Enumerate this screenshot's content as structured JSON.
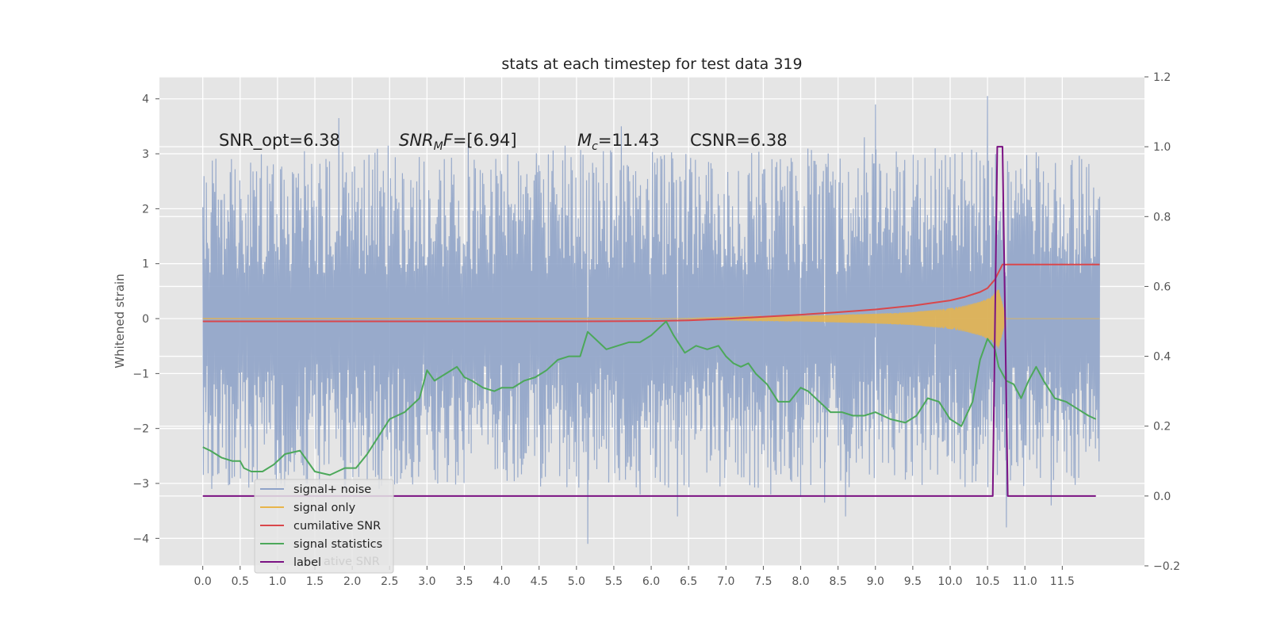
{
  "chart_data": {
    "type": "line",
    "title": "stats at each timestep for test data 319",
    "xlabel": "",
    "ylabel": "Whitened strain",
    "y2label": "",
    "xlim": [
      -0.58,
      12.6
    ],
    "ylim": [
      -4.5,
      4.4
    ],
    "y2lim": [
      -0.2,
      1.2
    ],
    "xticks": [
      "0.0",
      "0.5",
      "1.0",
      "1.5",
      "2.0",
      "2.5",
      "3.0",
      "3.5",
      "4.0",
      "4.5",
      "5.0",
      "5.5",
      "6.0",
      "6.5",
      "7.0",
      "7.5",
      "8.0",
      "8.5",
      "9.0",
      "9.5",
      "10.0",
      "10.5",
      "11.0",
      "11.5"
    ],
    "yticks": [
      "4",
      "3",
      "2",
      "1",
      "0",
      "−1",
      "−2",
      "−3",
      "−4"
    ],
    "y2ticks": [
      "1.2",
      "1.0",
      "0.8",
      "0.6",
      "0.4",
      "0.2",
      "0.0",
      "−0.2"
    ],
    "grid": true,
    "legend_position": "lower-left",
    "annotations": [
      {
        "id": "snr_opt",
        "text": "SNR_opt=6.38",
        "x": 0.2
      },
      {
        "id": "snr_mf",
        "text": "=[6.94]",
        "x": 2.6
      },
      {
        "id": "mc",
        "text": "=11.43",
        "x": 5.0
      },
      {
        "id": "csnr",
        "text": "CSNR=6.38",
        "x": 6.5
      }
    ],
    "series": [
      {
        "name": "signal+ noise",
        "color": "#8fa3c8",
        "description_axis": "left",
        "x_range": [
          0.0,
          12.0
        ],
        "typical_envelope": [
          -2.0,
          2.0
        ],
        "spikes": [
          {
            "x": 0.12,
            "y": -3.1
          },
          {
            "x": 1.82,
            "y": 3.65
          },
          {
            "x": 2.48,
            "y": 3.15
          },
          {
            "x": 3.55,
            "y": 3.2
          },
          {
            "x": 4.85,
            "y": 3.15
          },
          {
            "x": 5.15,
            "y": -4.1
          },
          {
            "x": 5.6,
            "y": 3.5
          },
          {
            "x": 5.85,
            "y": -3.2
          },
          {
            "x": 6.0,
            "y": 1.1
          },
          {
            "x": 6.35,
            "y": -3.6
          },
          {
            "x": 7.6,
            "y": -3.2
          },
          {
            "x": 8.0,
            "y": -3.25
          },
          {
            "x": 8.32,
            "y": -3.35
          },
          {
            "x": 8.6,
            "y": -3.6
          },
          {
            "x": 8.85,
            "y": 3.3
          },
          {
            "x": 9.0,
            "y": 3.9
          },
          {
            "x": 9.8,
            "y": 3.1
          },
          {
            "x": 10.5,
            "y": 4.05
          },
          {
            "x": 10.75,
            "y": -3.8
          },
          {
            "x": 11.35,
            "y": -3.4
          }
        ]
      },
      {
        "name": "signal only",
        "color": "#e8b54a",
        "description_axis": "left",
        "envelope_x": [
          6.0,
          6.5,
          7.0,
          7.5,
          8.0,
          8.5,
          9.0,
          9.5,
          10.0,
          10.2,
          10.4,
          10.55,
          10.65,
          10.75,
          12.0
        ],
        "envelope_amp": [
          0.0,
          0.01,
          0.03,
          0.04,
          0.05,
          0.07,
          0.09,
          0.12,
          0.19,
          0.24,
          0.31,
          0.4,
          0.55,
          0.0,
          0.0
        ]
      },
      {
        "name": "cumilative SNR",
        "color": "#d9474b",
        "description_axis": "right",
        "x": [
          0.0,
          5.0,
          6.0,
          6.5,
          7.0,
          7.5,
          8.0,
          8.5,
          9.0,
          9.5,
          10.0,
          10.2,
          10.4,
          10.5,
          10.6,
          10.7,
          11.0,
          12.0
        ],
        "values": [
          0.5,
          0.5,
          0.501,
          0.503,
          0.507,
          0.513,
          0.519,
          0.526,
          0.534,
          0.545,
          0.56,
          0.57,
          0.584,
          0.595,
          0.62,
          0.663,
          0.663,
          0.663
        ]
      },
      {
        "name": "signal statistics",
        "color": "#4ca85a",
        "description_axis": "right",
        "x": [
          0.0,
          0.1,
          0.25,
          0.4,
          0.5,
          0.55,
          0.65,
          0.8,
          0.95,
          1.1,
          1.3,
          1.5,
          1.7,
          1.9,
          2.05,
          2.2,
          2.35,
          2.5,
          2.7,
          2.9,
          3.0,
          3.1,
          3.25,
          3.4,
          3.5,
          3.6,
          3.75,
          3.9,
          4.0,
          4.15,
          4.3,
          4.45,
          4.6,
          4.75,
          4.9,
          5.05,
          5.15,
          5.25,
          5.4,
          5.55,
          5.7,
          5.85,
          6.0,
          6.1,
          6.2,
          6.3,
          6.45,
          6.6,
          6.75,
          6.9,
          7.0,
          7.1,
          7.2,
          7.3,
          7.4,
          7.55,
          7.7,
          7.85,
          8.0,
          8.1,
          8.25,
          8.4,
          8.55,
          8.7,
          8.85,
          9.0,
          9.2,
          9.4,
          9.55,
          9.7,
          9.85,
          10.0,
          10.15,
          10.3,
          10.4,
          10.5,
          10.6,
          10.65,
          10.75,
          10.85,
          10.95,
          11.05,
          11.15,
          11.25,
          11.4,
          11.55,
          11.7,
          11.85,
          11.95
        ],
        "values": [
          0.14,
          0.13,
          0.11,
          0.1,
          0.1,
          0.08,
          0.07,
          0.07,
          0.09,
          0.12,
          0.13,
          0.07,
          0.06,
          0.08,
          0.08,
          0.12,
          0.17,
          0.22,
          0.24,
          0.28,
          0.36,
          0.33,
          0.35,
          0.37,
          0.34,
          0.33,
          0.31,
          0.3,
          0.31,
          0.31,
          0.33,
          0.34,
          0.36,
          0.39,
          0.4,
          0.4,
          0.47,
          0.45,
          0.42,
          0.43,
          0.44,
          0.44,
          0.46,
          0.48,
          0.5,
          0.46,
          0.41,
          0.43,
          0.42,
          0.43,
          0.4,
          0.38,
          0.37,
          0.38,
          0.35,
          0.32,
          0.27,
          0.27,
          0.31,
          0.3,
          0.27,
          0.24,
          0.24,
          0.23,
          0.23,
          0.24,
          0.22,
          0.21,
          0.23,
          0.28,
          0.27,
          0.22,
          0.2,
          0.27,
          0.39,
          0.45,
          0.42,
          0.37,
          0.33,
          0.32,
          0.28,
          0.33,
          0.37,
          0.33,
          0.28,
          0.27,
          0.25,
          0.23,
          0.22
        ]
      },
      {
        "name": "label",
        "color": "#7b1283",
        "description_axis": "right",
        "x": [
          0.0,
          10.57,
          10.63,
          10.7,
          10.77,
          11.95
        ],
        "values": [
          0.0,
          0.0,
          1.0,
          1.0,
          0.0,
          0.0
        ]
      }
    ],
    "legend": [
      "signal+ noise",
      "signal only",
      "cumilative SNR",
      "signal statistics",
      "label"
    ],
    "legend_ghost_text": "ative SNR"
  }
}
